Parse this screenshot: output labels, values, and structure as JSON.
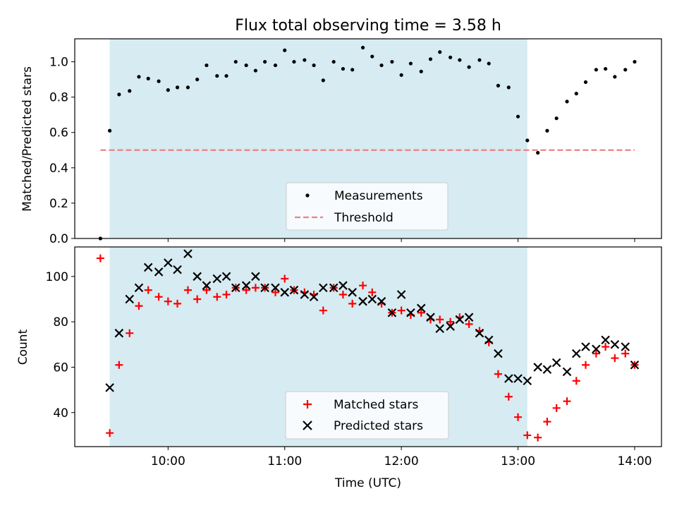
{
  "chart_data": {
    "title": "Flux total observing time = 3.58 h",
    "xlabel": "Time (UTC)",
    "x_unit": "hours UTC",
    "xlim": [
      9.2,
      14.23
    ],
    "xticks": [
      {
        "value": 10,
        "label": "10:00"
      },
      {
        "value": 11,
        "label": "11:00"
      },
      {
        "value": 12,
        "label": "12:00"
      },
      {
        "value": 13,
        "label": "13:00"
      },
      {
        "value": 14,
        "label": "14:00"
      }
    ],
    "observing_window": {
      "start": 9.5,
      "end": 13.08,
      "color": "#add8e6"
    },
    "panels": [
      {
        "type": "scatter",
        "ylabel": "Matched/Predicted stars",
        "ylim": [
          0,
          1.13
        ],
        "yticks": [
          {
            "value": 0.0,
            "label": "0.0"
          },
          {
            "value": 0.2,
            "label": "0.2"
          },
          {
            "value": 0.4,
            "label": "0.4"
          },
          {
            "value": 0.6,
            "label": "0.6"
          },
          {
            "value": 0.8,
            "label": "0.8"
          },
          {
            "value": 1.0,
            "label": "1.0"
          }
        ],
        "threshold": {
          "value": 0.5,
          "x_range": [
            9.42,
            14.0
          ],
          "color": "#f08080"
        },
        "legend": {
          "placement": "lower center",
          "items": [
            "Measurements",
            "Threshold"
          ]
        },
        "series": [
          {
            "name": "Measurements",
            "marker": "dot",
            "color": "#000000",
            "points": [
              [
                9.42,
                0.0
              ],
              [
                9.5,
                0.61
              ],
              [
                9.58,
                0.815
              ],
              [
                9.67,
                0.835
              ],
              [
                9.75,
                0.915
              ],
              [
                9.83,
                0.905
              ],
              [
                9.92,
                0.89
              ],
              [
                10.0,
                0.84
              ],
              [
                10.08,
                0.855
              ],
              [
                10.17,
                0.855
              ],
              [
                10.25,
                0.9
              ],
              [
                10.33,
                0.98
              ],
              [
                10.42,
                0.92
              ],
              [
                10.5,
                0.92
              ],
              [
                10.58,
                1.0
              ],
              [
                10.67,
                0.98
              ],
              [
                10.75,
                0.95
              ],
              [
                10.83,
                1.0
              ],
              [
                10.92,
                0.98
              ],
              [
                11.0,
                1.065
              ],
              [
                11.08,
                1.0
              ],
              [
                11.17,
                1.01
              ],
              [
                11.25,
                0.98
              ],
              [
                11.33,
                0.895
              ],
              [
                11.42,
                1.0
              ],
              [
                11.5,
                0.96
              ],
              [
                11.58,
                0.955
              ],
              [
                11.67,
                1.08
              ],
              [
                11.75,
                1.03
              ],
              [
                11.83,
                0.98
              ],
              [
                11.92,
                1.0
              ],
              [
                12.0,
                0.925
              ],
              [
                12.08,
                0.99
              ],
              [
                12.17,
                0.945
              ],
              [
                12.25,
                1.015
              ],
              [
                12.33,
                1.055
              ],
              [
                12.42,
                1.025
              ],
              [
                12.5,
                1.01
              ],
              [
                12.58,
                0.97
              ],
              [
                12.67,
                1.01
              ],
              [
                12.75,
                0.99
              ],
              [
                12.83,
                0.865
              ],
              [
                12.92,
                0.855
              ],
              [
                13.0,
                0.69
              ],
              [
                13.08,
                0.555
              ],
              [
                13.17,
                0.485
              ],
              [
                13.25,
                0.61
              ],
              [
                13.33,
                0.68
              ],
              [
                13.42,
                0.775
              ],
              [
                13.5,
                0.82
              ],
              [
                13.58,
                0.885
              ],
              [
                13.67,
                0.955
              ],
              [
                13.75,
                0.96
              ],
              [
                13.83,
                0.915
              ],
              [
                13.92,
                0.955
              ],
              [
                14.0,
                1.0
              ]
            ]
          }
        ]
      },
      {
        "type": "scatter",
        "ylabel": "Count",
        "ylim": [
          25,
          113
        ],
        "yticks": [
          {
            "value": 40,
            "label": "40"
          },
          {
            "value": 60,
            "label": "60"
          },
          {
            "value": 80,
            "label": "80"
          },
          {
            "value": 100,
            "label": "100"
          }
        ],
        "legend": {
          "placement": "lower center",
          "items": [
            "Matched stars",
            "Predicted stars"
          ]
        },
        "series": [
          {
            "name": "Matched stars",
            "marker": "plus",
            "color": "#ff0000",
            "points": [
              [
                9.42,
                108
              ],
              [
                9.5,
                31
              ],
              [
                9.58,
                61
              ],
              [
                9.67,
                75
              ],
              [
                9.75,
                87
              ],
              [
                9.83,
                94
              ],
              [
                9.92,
                91
              ],
              [
                10.0,
                89
              ],
              [
                10.08,
                88
              ],
              [
                10.17,
                94
              ],
              [
                10.25,
                90
              ],
              [
                10.33,
                94
              ],
              [
                10.42,
                91
              ],
              [
                10.5,
                92
              ],
              [
                10.58,
                95
              ],
              [
                10.67,
                94
              ],
              [
                10.75,
                95
              ],
              [
                10.83,
                95
              ],
              [
                10.92,
                93
              ],
              [
                11.0,
                99
              ],
              [
                11.08,
                94
              ],
              [
                11.17,
                93
              ],
              [
                11.25,
                92
              ],
              [
                11.33,
                85
              ],
              [
                11.42,
                95
              ],
              [
                11.5,
                92
              ],
              [
                11.58,
                88
              ],
              [
                11.67,
                96
              ],
              [
                11.75,
                93
              ],
              [
                11.83,
                88
              ],
              [
                11.92,
                84
              ],
              [
                12.0,
                85
              ],
              [
                12.08,
                83
              ],
              [
                12.17,
                84
              ],
              [
                12.25,
                81
              ],
              [
                12.33,
                81
              ],
              [
                12.42,
                80
              ],
              [
                12.5,
                82
              ],
              [
                12.58,
                79
              ],
              [
                12.67,
                76
              ],
              [
                12.75,
                71
              ],
              [
                12.83,
                57
              ],
              [
                12.92,
                47
              ],
              [
                13.0,
                38
              ],
              [
                13.08,
                30
              ],
              [
                13.17,
                29
              ],
              [
                13.25,
                36
              ],
              [
                13.33,
                42
              ],
              [
                13.42,
                45
              ],
              [
                13.5,
                54
              ],
              [
                13.58,
                61
              ],
              [
                13.67,
                66
              ],
              [
                13.75,
                69
              ],
              [
                13.83,
                64
              ],
              [
                13.92,
                66
              ],
              [
                14.0,
                61
              ]
            ]
          },
          {
            "name": "Predicted stars",
            "marker": "x",
            "color": "#000000",
            "points": [
              [
                9.5,
                51
              ],
              [
                9.58,
                75
              ],
              [
                9.67,
                90
              ],
              [
                9.75,
                95
              ],
              [
                9.83,
                104
              ],
              [
                9.92,
                102
              ],
              [
                10.0,
                106
              ],
              [
                10.08,
                103
              ],
              [
                10.17,
                110
              ],
              [
                10.25,
                100
              ],
              [
                10.33,
                96
              ],
              [
                10.42,
                99
              ],
              [
                10.5,
                100
              ],
              [
                10.58,
                95
              ],
              [
                10.67,
                96
              ],
              [
                10.75,
                100
              ],
              [
                10.83,
                95
              ],
              [
                10.92,
                95
              ],
              [
                11.0,
                93
              ],
              [
                11.08,
                94
              ],
              [
                11.17,
                92
              ],
              [
                11.25,
                91
              ],
              [
                11.33,
                95
              ],
              [
                11.42,
                95
              ],
              [
                11.5,
                96
              ],
              [
                11.58,
                93
              ],
              [
                11.67,
                89
              ],
              [
                11.75,
                90
              ],
              [
                11.83,
                89
              ],
              [
                11.92,
                84
              ],
              [
                12.0,
                92
              ],
              [
                12.08,
                84
              ],
              [
                12.17,
                86
              ],
              [
                12.25,
                82
              ],
              [
                12.33,
                77
              ],
              [
                12.42,
                78
              ],
              [
                12.5,
                81
              ],
              [
                12.58,
                82
              ],
              [
                12.67,
                75
              ],
              [
                12.75,
                72
              ],
              [
                12.83,
                66
              ],
              [
                12.92,
                55
              ],
              [
                13.0,
                55
              ],
              [
                13.08,
                54
              ],
              [
                13.17,
                60
              ],
              [
                13.25,
                59
              ],
              [
                13.33,
                62
              ],
              [
                13.42,
                58
              ],
              [
                13.5,
                66
              ],
              [
                13.58,
                69
              ],
              [
                13.67,
                68
              ],
              [
                13.75,
                72
              ],
              [
                13.83,
                70
              ],
              [
                13.92,
                69
              ],
              [
                14.0,
                61
              ]
            ]
          }
        ]
      }
    ]
  }
}
